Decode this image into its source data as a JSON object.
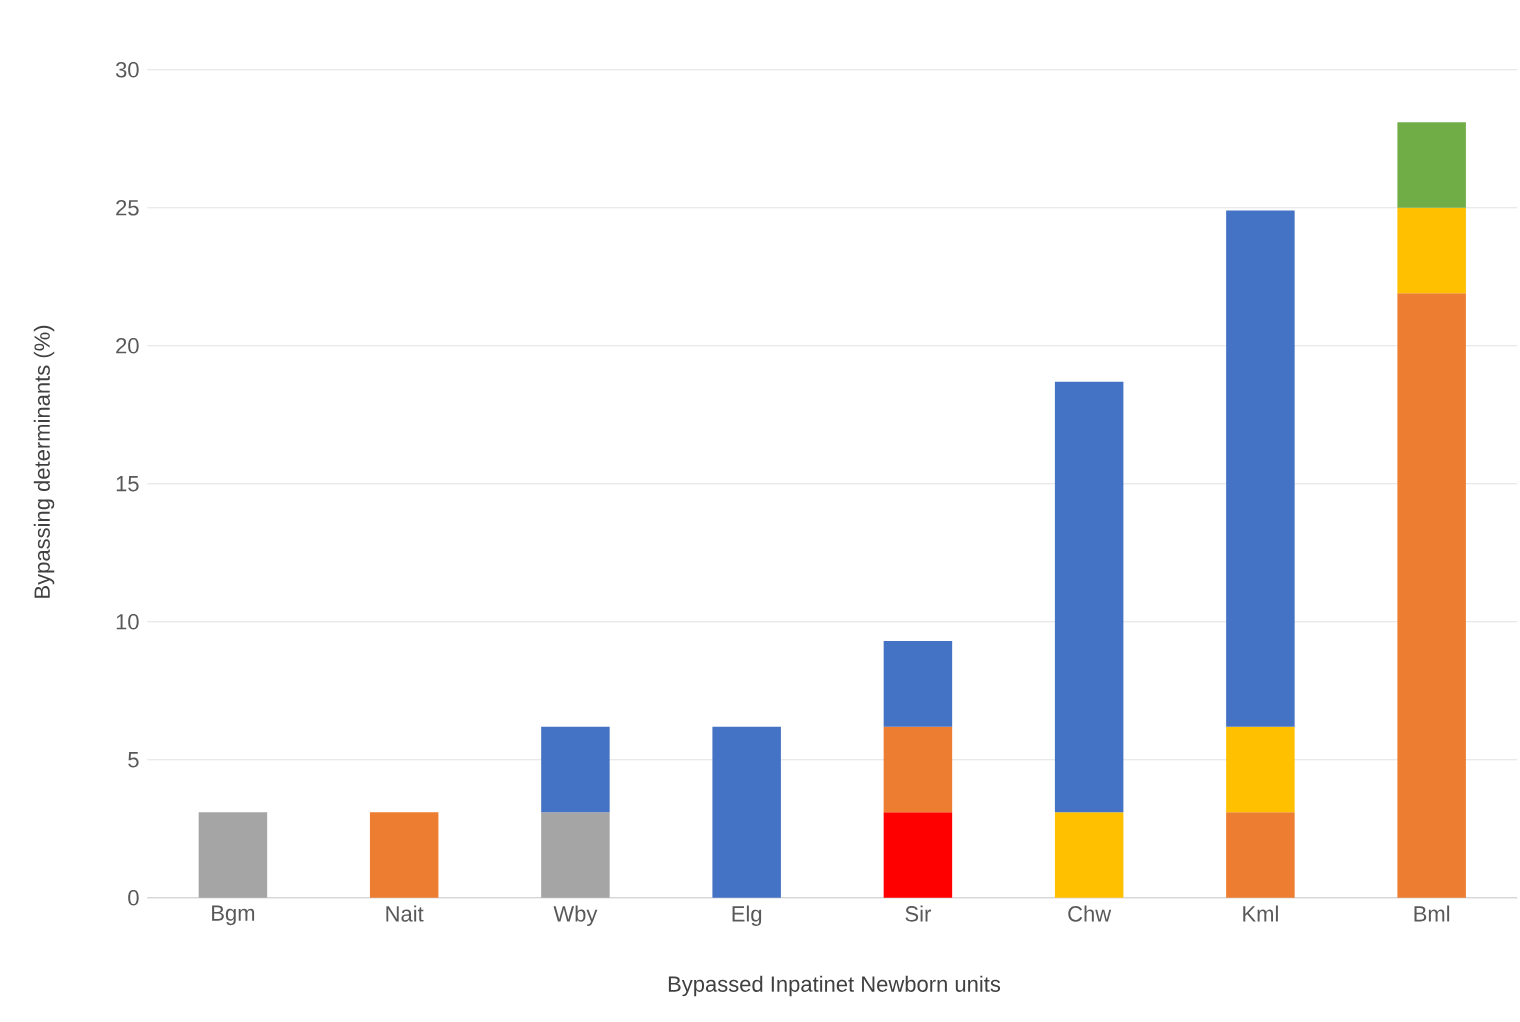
{
  "chart_data": {
    "type": "bar",
    "stacked": true,
    "xlabel": "Bypassed Inpatinet Newborn units",
    "ylabel": "Bypassing determinants (%)",
    "categories": [
      "Bgm",
      "Nait",
      "Wby",
      "Elg",
      "Sir",
      "Chw",
      "Kml",
      "Bml"
    ],
    "series": [
      {
        "color": "#ff0000",
        "values": [
          null,
          null,
          null,
          null,
          3.1,
          null,
          null,
          null
        ]
      },
      {
        "color": "#a5a5a5",
        "values": [
          3.1,
          null,
          3.1,
          null,
          null,
          null,
          null,
          null
        ]
      },
      {
        "color": "#ed7d31",
        "values": [
          null,
          3.1,
          null,
          null,
          3.1,
          null,
          3.1,
          21.9
        ]
      },
      {
        "color": "#ffc000",
        "values": [
          null,
          null,
          null,
          null,
          null,
          3.1,
          3.1,
          3.1
        ]
      },
      {
        "color": "#4472c4",
        "values": [
          null,
          null,
          3.1,
          6.2,
          3.1,
          15.6,
          18.7,
          null
        ]
      },
      {
        "color": "#70ad47",
        "values": [
          null,
          null,
          null,
          null,
          null,
          null,
          null,
          3.1
        ]
      }
    ],
    "ylim": [
      0,
      30
    ],
    "yticks": [
      0,
      5,
      10,
      15,
      20,
      25,
      30
    ],
    "grid": "y"
  }
}
